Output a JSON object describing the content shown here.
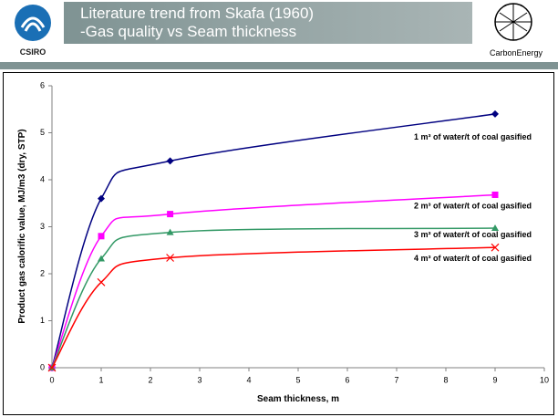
{
  "header": {
    "logo_left": "CSIRO",
    "logo_right": "CarbonEnergy"
  },
  "chart_data": {
    "type": "line",
    "title": [
      "Literature trend from Skafa (1960)",
      "-Gas quality vs Seam thickness"
    ],
    "x_label": "Seam thickness, m",
    "y_label": "Product gas calorific value, MJ/m3 (dry, STP)",
    "x": [
      0,
      1,
      2.4,
      9
    ],
    "xlim": [
      0,
      10
    ],
    "xticks": [
      0,
      1,
      2,
      3,
      4,
      5,
      6,
      7,
      8,
      9,
      10
    ],
    "ylim": [
      0,
      6
    ],
    "yticks": [
      0,
      1,
      2,
      3,
      4,
      5,
      6
    ],
    "grid": false,
    "smooth": true,
    "series": [
      {
        "name": "1 m³ of water/t of coal gasified",
        "color": "#000080",
        "marker": "diamond",
        "values": [
          0,
          3.6,
          4.4,
          5.4
        ]
      },
      {
        "name": "2 m³ of water/t of coal gasified",
        "color": "#ff00ff",
        "marker": "square",
        "values": [
          0,
          2.8,
          3.27,
          3.68
        ]
      },
      {
        "name": "3 m³ of water/t of coal gasified",
        "color": "#339966",
        "marker": "triangle",
        "values": [
          0,
          2.32,
          2.88,
          2.97
        ]
      },
      {
        "name": "4 m³ of water/t of coal gasified",
        "color": "#ff0000",
        "marker": "x",
        "values": [
          0,
          1.82,
          2.34,
          2.56
        ]
      }
    ]
  }
}
